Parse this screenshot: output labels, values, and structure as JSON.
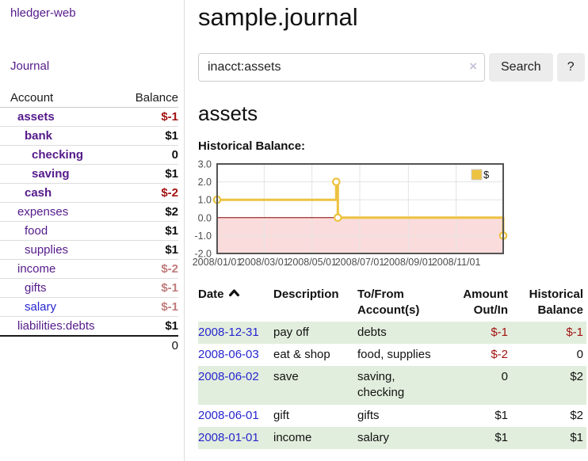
{
  "app": {
    "brand": "hledger-web"
  },
  "sidebar": {
    "journal_label": "Journal",
    "accounts_table": {
      "headers": {
        "account": "Account",
        "balance": "Balance"
      },
      "rows": [
        {
          "name": "assets",
          "depth": 1,
          "bold": true,
          "balance": "$-1"
        },
        {
          "name": "bank",
          "depth": 2,
          "bold": true,
          "balance": "$1"
        },
        {
          "name": "checking",
          "depth": 3,
          "bold": true,
          "balance": "0"
        },
        {
          "name": "saving",
          "depth": 3,
          "bold": true,
          "balance": "$1"
        },
        {
          "name": "cash",
          "depth": 2,
          "bold": true,
          "balance": "$-2"
        },
        {
          "name": "expenses",
          "depth": 1,
          "bold": false,
          "balance": "$2"
        },
        {
          "name": "food",
          "depth": 2,
          "bold": false,
          "balance": "$1"
        },
        {
          "name": "supplies",
          "depth": 2,
          "bold": false,
          "balance": "$1"
        },
        {
          "name": "income",
          "depth": 1,
          "bold": false,
          "balance": "$-2"
        },
        {
          "name": "gifts",
          "depth": 2,
          "bold": false,
          "balance": "$-1"
        },
        {
          "name": "salary",
          "depth": 2,
          "bold": false,
          "link_color": "blue",
          "balance": "$-1"
        },
        {
          "name": "liabilities:debts",
          "depth": 1,
          "bold": false,
          "balance": "$1"
        }
      ],
      "total": "0"
    }
  },
  "main": {
    "title": "sample.journal",
    "search": {
      "value": "inacct:assets",
      "clear_icon": "×",
      "button_label": "Search",
      "help_label": "?"
    },
    "account_heading": "assets",
    "chart_heading": "Historical Balance:",
    "register": {
      "headers": [
        "Date",
        "Description",
        "To/From Account(s)",
        "Amount Out/In",
        "Historical Balance"
      ],
      "rows": [
        {
          "date": "2008-12-31",
          "description": "pay off",
          "accounts": "debts",
          "amount": "$-1",
          "balance": "$-1"
        },
        {
          "date": "2008-06-03",
          "description": "eat & shop",
          "accounts": "food, supplies",
          "amount": "$-2",
          "balance": "0"
        },
        {
          "date": "2008-06-02",
          "description": "save",
          "accounts": "saving, checking",
          "amount": "0",
          "balance": "$2"
        },
        {
          "date": "2008-06-01",
          "description": "gift",
          "accounts": "gifts",
          "amount": "$1",
          "balance": "$2"
        },
        {
          "date": "2008-01-01",
          "description": "income",
          "accounts": "salary",
          "amount": "$1",
          "balance": "$1"
        }
      ]
    }
  },
  "chart_data": {
    "type": "line",
    "style": "step",
    "title": "Historical Balance:",
    "series": [
      {
        "name": "$",
        "points": [
          {
            "date": "2008-01-01",
            "value": 1
          },
          {
            "date": "2008-06-01",
            "value": 2
          },
          {
            "date": "2008-06-03",
            "value": 0
          },
          {
            "date": "2008-12-31",
            "value": -1
          }
        ]
      }
    ],
    "xlim": [
      "2008-01-01",
      "2008-12-31"
    ],
    "ylim": [
      -2,
      3
    ],
    "yticks": [
      3,
      2,
      1,
      0,
      -1,
      -2
    ],
    "xticks": [
      {
        "date": "2008-01-01",
        "label": "2008/01/01"
      },
      {
        "date": "2008-03-01",
        "label": "2008/03/01"
      },
      {
        "date": "2008-05-01",
        "label": "2008/05/01"
      },
      {
        "date": "2008-07-01",
        "label": "2008/07/01"
      },
      {
        "date": "2008-09-01",
        "label": "2008/09/01"
      },
      {
        "date": "2008-11-01",
        "label": "2008/11/01"
      }
    ],
    "legend_position": "top-right",
    "grid": true,
    "colors": {
      "line": "#edc240",
      "marker_fill": "#ffffff",
      "negative_region": "#fbdcdc",
      "zero_line": "#8b0000",
      "grid_line": "#e3e3e3",
      "border": "#545454",
      "axis_text": "#4d4d4d"
    }
  }
}
